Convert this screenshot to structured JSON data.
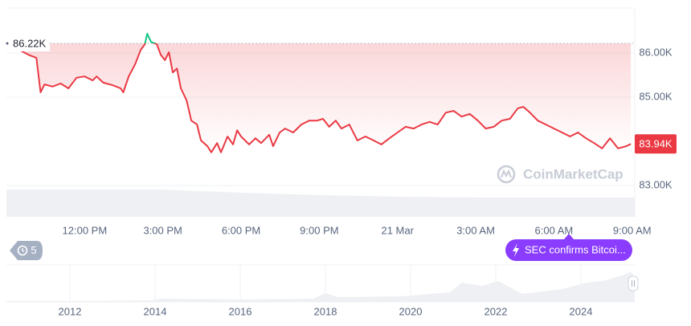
{
  "chart_data": {
    "type": "line",
    "x": [
      9.02,
      9.85,
      10.15,
      10.31,
      10.46,
      10.77,
      11.08,
      11.38,
      11.69,
      12,
      12.31,
      12.46,
      12.71,
      13.08,
      13.38,
      13.48,
      13.69,
      13.94,
      14.15,
      14.31,
      14.4,
      14.55,
      14.77,
      14.92,
      15.08,
      15.23,
      15.38,
      15.54,
      15.69,
      15.91,
      16.09,
      16.31,
      16.46,
      16.71,
      16.86,
      17.08,
      17.23,
      17.48,
      17.69,
      17.85,
      18,
      18.31,
      18.55,
      18.77,
      19.08,
      19.23,
      19.48,
      19.69,
      20,
      20.31,
      20.62,
      20.92,
      21.14,
      21.38,
      21.63,
      21.85,
      22.15,
      22.46,
      22.77,
      23.08,
      23.38,
      23.69,
      24,
      24.31,
      24.62,
      24.92,
      25.23,
      25.54,
      25.85,
      26.15,
      26.46,
      26.77,
      27.08,
      27.38,
      27.69,
      28,
      28.31,
      28.62,
      28.83,
      29.08,
      29.38,
      29.69,
      30,
      30.31,
      30.62,
      30.92,
      31.23,
      31.54,
      31.85,
      32.15,
      32.46,
      32.77,
      32.95
    ],
    "values": [
      86.22,
      85.96,
      85.89,
      85.11,
      85.29,
      85.24,
      85.31,
      85.2,
      85.44,
      85.47,
      85.38,
      85.47,
      85.33,
      85.27,
      85.2,
      85.11,
      85.47,
      85.75,
      86.07,
      86.2,
      86.44,
      86.25,
      86.2,
      85.96,
      85.84,
      86.02,
      85.56,
      85.65,
      85.2,
      84.93,
      84.47,
      84.38,
      84.02,
      83.89,
      83.75,
      83.96,
      83.75,
      84.11,
      83.93,
      84.25,
      84.11,
      83.93,
      84.07,
      83.96,
      84.15,
      83.89,
      84.2,
      84.29,
      84.2,
      84.38,
      84.47,
      84.47,
      84.51,
      84.33,
      84.47,
      84.29,
      84.38,
      84.02,
      84.11,
      84.02,
      83.93,
      84.07,
      84.2,
      84.33,
      84.29,
      84.38,
      84.44,
      84.38,
      84.65,
      84.69,
      84.56,
      84.62,
      84.47,
      84.29,
      84.33,
      84.47,
      84.51,
      84.75,
      84.78,
      84.65,
      84.47,
      84.38,
      84.29,
      84.2,
      84.11,
      84.2,
      84.07,
      83.96,
      83.84,
      84.07,
      83.84,
      83.89,
      83.94
    ],
    "color": "#ea3943",
    "color_above": "#16c784",
    "xlim": [
      9,
      33.1
    ],
    "xticks": [
      {
        "value": 12,
        "label": "12:00 PM"
      },
      {
        "value": 15,
        "label": "3:00 PM"
      },
      {
        "value": 18,
        "label": "6:00 PM"
      },
      {
        "value": 21,
        "label": "9:00 PM"
      },
      {
        "value": 24,
        "label": "21 Mar"
      },
      {
        "value": 27,
        "label": "3:00 AM"
      },
      {
        "value": 30,
        "label": "6:00 AM"
      },
      {
        "value": 33,
        "label": "9:00 AM"
      }
    ],
    "ylim": [
      82.29,
      87.02
    ],
    "yticks": [
      {
        "value": 86,
        "label": "86.00K"
      },
      {
        "value": 85,
        "label": "85.00K"
      },
      {
        "value": 83,
        "label": "83.00K"
      }
    ],
    "grid": true,
    "reference": {
      "value": 86.22,
      "label": "86.22K"
    },
    "last": {
      "value": 83.94,
      "label": "83.94K"
    }
  },
  "watermark": "CoinMarketCap",
  "badges": {
    "count": 5,
    "event": "SEC confirms Bitcoi..."
  },
  "navigator": {
    "years": [
      2012,
      2014,
      2016,
      2018,
      2020,
      2022,
      2024
    ]
  }
}
